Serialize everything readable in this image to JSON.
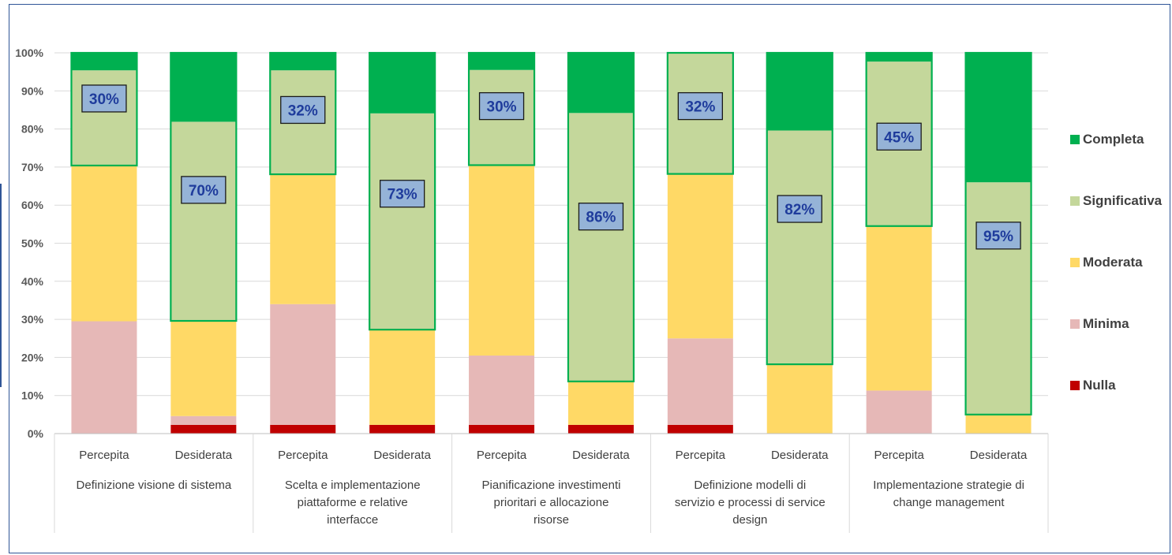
{
  "chart_data": {
    "type": "bar",
    "stacked": true,
    "title": "",
    "xlabel": "",
    "ylabel": "",
    "ylim": [
      0,
      100
    ],
    "y_ticks": [
      "0%",
      "10%",
      "20%",
      "30%",
      "40%",
      "50%",
      "60%",
      "70%",
      "80%",
      "90%",
      "100%"
    ],
    "grid": true,
    "legend_position": "right",
    "groups": [
      "Definizione visione di sistema",
      "Scelta e implementazione piattaforme e relative interfacce",
      "Pianificazione investimenti prioritari e allocazione risorse",
      "Definizione modelli di servizio e processi di service design",
      "Implementazione strategie di change management"
    ],
    "categories": [
      "Percepita",
      "Desiderata",
      "Percepita",
      "Desiderata",
      "Percepita",
      "Desiderata",
      "Percepita",
      "Desiderata",
      "Percepita",
      "Desiderata"
    ],
    "series": [
      {
        "name": "Nulla",
        "color": "#c00000",
        "values": [
          0,
          2.3,
          2.3,
          2.3,
          2.3,
          2.3,
          2.3,
          0,
          0,
          0
        ]
      },
      {
        "name": "Minima",
        "color": "#e6b8b7",
        "values": [
          29.5,
          2.3,
          31.7,
          0,
          18.2,
          0,
          22.7,
          0,
          11.3,
          0
        ]
      },
      {
        "name": "Moderata",
        "color": "#ffd966",
        "values": [
          40.9,
          25,
          34.1,
          25,
          50,
          11.4,
          43.2,
          18.2,
          43.2,
          5
        ]
      },
      {
        "name": "Significativa",
        "color": "#c4d79b",
        "values": [
          25,
          52.3,
          27.3,
          56.8,
          25,
          70.5,
          31.8,
          61.4,
          43.2,
          61
        ]
      },
      {
        "name": "Completa",
        "color": "#00b050",
        "values": [
          4.6,
          18.1,
          4.6,
          15.9,
          4.5,
          15.8,
          0,
          20.4,
          2.3,
          34
        ]
      }
    ],
    "outlined_series": [
      "Significativa",
      "Completa"
    ],
    "outline_color": "#00b050",
    "annotations": [
      "30%",
      "70%",
      "32%",
      "73%",
      "30%",
      "86%",
      "32%",
      "82%",
      "45%",
      "95%"
    ],
    "annotation_y": [
      88,
      64,
      85,
      63,
      86,
      57,
      86,
      59,
      78,
      52
    ]
  }
}
